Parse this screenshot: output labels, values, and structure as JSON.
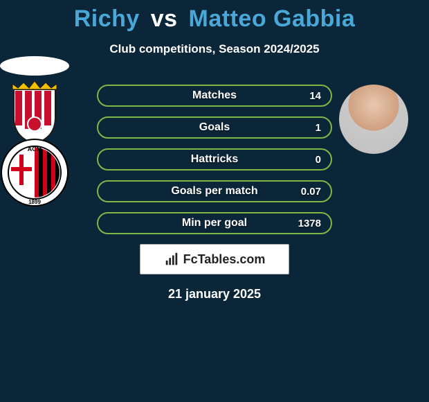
{
  "title": {
    "player1": "Richy",
    "vs": "vs",
    "player2": "Matteo Gabbia"
  },
  "subtitle": "Club competitions, Season 2024/2025",
  "date": "21 january 2025",
  "badge_text": "FcTables.com",
  "colors": {
    "background": "#0a2638",
    "accent": "#4aa8d8",
    "row_border": "#7fb848",
    "row_fill_partial": "#7fb848",
    "badge_bg": "#ffffff",
    "badge_text": "#222222"
  },
  "stats": [
    {
      "label": "Matches",
      "value": "14",
      "fill_pct": 0,
      "border": "#7fb848"
    },
    {
      "label": "Goals",
      "value": "1",
      "fill_pct": 0,
      "border": "#7fb848"
    },
    {
      "label": "Hattricks",
      "value": "0",
      "fill_pct": 0,
      "border": "#7fb848"
    },
    {
      "label": "Goals per match",
      "value": "0.07",
      "fill_pct": 0,
      "border": "#7fb848"
    },
    {
      "label": "Min per goal",
      "value": "1378",
      "fill_pct": 0,
      "border": "#7fb848"
    }
  ],
  "clubs": {
    "left": {
      "name": "girona-crest",
      "crown": "#f3c000",
      "stripe1": "#c8102e",
      "stripe2": "#ffffff",
      "outline": "#1b1b1b"
    },
    "right": {
      "name": "ac-milan-crest",
      "ring": "#ffffff",
      "stripe_red": "#d0021b",
      "stripe_black": "#000000",
      "text": "ACM",
      "year": "1899"
    }
  }
}
